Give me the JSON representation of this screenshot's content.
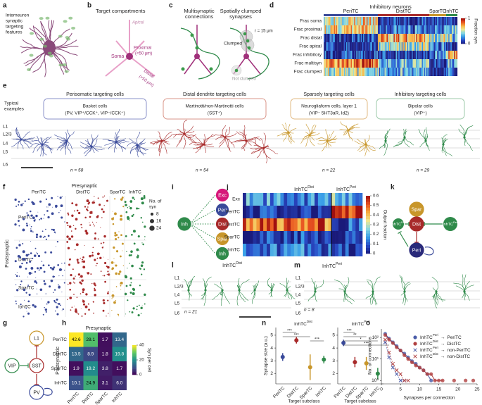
{
  "panel_labels": [
    "a",
    "b",
    "c",
    "d",
    "e",
    "f",
    "g",
    "h",
    "i",
    "j",
    "k",
    "l",
    "m",
    "n",
    "o"
  ],
  "a": {
    "title": [
      "Interneuron",
      "synaptic",
      "targeting",
      "features"
    ]
  },
  "b": {
    "title": "Target compartments",
    "apical": "Apical",
    "soma": "Soma",
    "proximal": "Proximal",
    "proximal_range": "(<50 μm)",
    "distal": "Distal",
    "distal_range": "(>50 μm)"
  },
  "c": {
    "title_left": [
      "Multisynaptic",
      "connections"
    ],
    "title_right": [
      "Spatially clumped",
      "synapses"
    ],
    "clumped": "Clumped",
    "radius": "r = 15 μm",
    "not_clumped": "Not clumped"
  },
  "d": {
    "title": "Inhibitory neurons",
    "groups": [
      "PeriTC",
      "DistTC",
      "SparTC",
      "InhTC"
    ],
    "rows": [
      "Frac soma",
      "Frac proximal",
      "Frac distal",
      "Frac apical",
      "Frac inhibitory",
      "Frac multisyn",
      "Frac clumped"
    ],
    "colorbar_ticks": [
      1,
      0
    ],
    "colorbar_label": "Fraction syn"
  },
  "e": {
    "typical": [
      "Typical",
      "examples"
    ],
    "groups": [
      {
        "title": "Perisomatic targeting cells",
        "subtitle": [
          "Basket cells",
          "(PV, VIP⁺/CCK⁺, VIP⁻/CCK⁺)"
        ],
        "n": "n = 58"
      },
      {
        "title": "Distal dendrite targeting cells",
        "subtitle": [
          "Martinotti/non-Martinotti cells",
          "(SST⁺)"
        ],
        "n": "n = 54"
      },
      {
        "title": "Sparsely targeting cells",
        "subtitle": [
          "Neurogliaform cells, layer 1",
          "(VIP⁻ 5HT3aR, Id2)"
        ],
        "n": "n = 22"
      },
      {
        "title": "Inhibitory targeting cells",
        "subtitle": [
          "Bipolar cells",
          "(VIP⁺)"
        ],
        "n": "n = 29"
      }
    ],
    "layers": [
      "L1",
      "L2/3",
      "L4",
      "L5",
      "L6"
    ]
  },
  "f": {
    "x_title": "Presynaptic",
    "y_title": "Postsynaptic",
    "columns": [
      "PeriTC",
      "DistTC",
      "SparTC",
      "InhTC"
    ],
    "rows": [
      "PeriTC",
      "DistTC",
      "SparTC",
      "InhTC"
    ],
    "legend_title": [
      "No. of",
      "syn"
    ],
    "legend_sizes": [
      8,
      16,
      24
    ]
  },
  "g": {
    "nodes": [
      "L1",
      "VIP",
      "SST",
      "PV"
    ]
  },
  "h": {
    "x_title": "Presynaptic",
    "y_title": "Postsynaptic",
    "labels": [
      "PeriTC",
      "DistTC",
      "SparTC",
      "InhTC"
    ],
    "values": [
      [
        "42.6",
        "28.1",
        "1.7",
        "13.4"
      ],
      [
        "13.5",
        "8.9",
        "1.8",
        "19.8"
      ],
      [
        "1.9",
        "19.2",
        "3.8",
        "1.7"
      ],
      [
        "10.1",
        "24.9",
        "3.1",
        "6.0"
      ]
    ],
    "colorbar_ticks": [
      0,
      20,
      40
    ],
    "colorbar_label": "Syn per cell"
  },
  "i": {
    "source": "Inh",
    "targets": [
      "Exc",
      "Peri",
      "Dist",
      "Spar",
      "Inh"
    ]
  },
  "j": {
    "columns": [
      {
        "base": "InhTC",
        "sup": "Dist"
      },
      {
        "base": "InhTC",
        "sup": "Peri"
      }
    ],
    "rows": [
      "Exc",
      "PeriTC",
      "DistTC",
      "SparTC",
      "InhTC"
    ],
    "colorbar_ticks": [
      0,
      0.1,
      0.2,
      0.3,
      0.4,
      0.5,
      0.6
    ],
    "colorbar_label": "Output fraction"
  },
  "k": {
    "spar": "Spar",
    "inh_dist": {
      "base": "InhTC",
      "sup": "Dist"
    },
    "dist": "Dist",
    "inh_peri": {
      "base": "InhTC",
      "sup": "Peri"
    },
    "peri": "Peri"
  },
  "l": {
    "title": {
      "base": "InhTC",
      "sup": "Dist"
    },
    "layers": [
      "L1",
      "L2/3",
      "L4",
      "L5",
      "L6"
    ],
    "n": "n = 21"
  },
  "m": {
    "title": {
      "base": "InhTC",
      "sup": "Peri"
    },
    "layers": [
      "L1",
      "L2/3",
      "L4",
      "L5",
      "L6"
    ],
    "n": "n = 8"
  },
  "n": {
    "y_label": "Synapse size (a.u.)",
    "x_label": "Target subclass",
    "ylim": [
      1.2,
      5.6
    ],
    "yticks": [
      2,
      3,
      4,
      5
    ],
    "categories": [
      "PeriTC",
      "DistTC",
      "SparTC",
      "InhTC"
    ],
    "plots": [
      {
        "title": {
          "base": "InhTC",
          "sup": "Dist"
        },
        "values": [
          3.3,
          4.6,
          2.5,
          3.1
        ],
        "errors": [
          0.3,
          0.25,
          1.0,
          0.3
        ],
        "significance": [
          "***",
          "***",
          "***"
        ]
      },
      {
        "title": {
          "base": "InhTC",
          "sup": "Peri"
        },
        "values": [
          4.4,
          2.9,
          2.8,
          2.0
        ],
        "errors": [
          0.25,
          0.4,
          0.5,
          0.45
        ],
        "significance": [
          "***",
          "**",
          "*",
          "***"
        ]
      }
    ]
  },
  "o": {
    "y_label": "No. of connections",
    "x_label": "Synapses per connection",
    "xlim": [
      0,
      25
    ],
    "xticks": [
      0,
      5,
      10,
      15,
      20,
      25
    ],
    "ylim": [
      0.7,
      250
    ],
    "log_y": true,
    "yticks": [
      {
        "value": 1,
        "label": "10⁰"
      },
      {
        "value": 10,
        "label": "10¹"
      },
      {
        "value": 100,
        "label": "10²"
      }
    ],
    "series": [
      {
        "legend": {
          "base": "InhTC",
          "sup": "Peri",
          "arrow": "→",
          "target": "PeriTC"
        },
        "color": "#4a5ca8",
        "marker": "circle",
        "x": [
          1,
          2,
          3,
          4,
          5,
          6,
          7,
          8,
          9,
          10,
          11,
          12,
          13
        ],
        "values": [
          150,
          90,
          60,
          40,
          25,
          18,
          12,
          8,
          6,
          4,
          3,
          2,
          1
        ]
      },
      {
        "legend": {
          "base": "InhTC",
          "sup": "Dist",
          "arrow": "→",
          "target": "DistTC"
        },
        "color": "#b04040",
        "marker": "circle",
        "x": [
          1,
          2,
          3,
          4,
          5,
          6,
          7,
          8,
          9,
          10,
          11,
          12,
          13,
          14,
          15,
          16,
          17,
          18,
          19,
          20,
          21,
          22,
          23,
          24
        ],
        "values": [
          130,
          80,
          55,
          35,
          25,
          15,
          10,
          7,
          5,
          4,
          3,
          2,
          2,
          1,
          1,
          1,
          null,
          null,
          1,
          null,
          null,
          1,
          null,
          1
        ]
      },
      {
        "legend": {
          "base": "InhTC",
          "sup": "Peri",
          "arrow": "→",
          "target": "non-PeriTC"
        },
        "color": "#4a5ca8",
        "marker": "cross",
        "x": [
          1,
          2,
          3,
          4,
          5,
          6
        ],
        "values": [
          60,
          12,
          4,
          2,
          1,
          1
        ]
      },
      {
        "legend": {
          "base": "InhTC",
          "sup": "Dist",
          "arrow": "→",
          "target": "non-DistTC"
        },
        "color": "#b04040",
        "marker": "cross",
        "x": [
          1,
          2,
          3,
          4,
          5,
          6,
          7
        ],
        "values": [
          80,
          20,
          6,
          3,
          2,
          1,
          1
        ]
      }
    ]
  }
}
